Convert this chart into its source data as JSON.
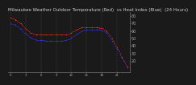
{
  "title": "Milwaukee Weather Outdoor Temperature (Red)  vs Heat Index (Blue)  (24 Hours)",
  "temp_red": [
    78,
    75,
    70,
    63,
    58,
    55,
    55,
    55,
    55,
    55,
    55,
    55,
    58,
    62,
    65,
    65,
    65,
    65,
    64,
    60,
    50,
    38,
    25,
    12
  ],
  "heat_blue": [
    70,
    68,
    63,
    56,
    51,
    48,
    48,
    47,
    47,
    47,
    47,
    48,
    51,
    56,
    60,
    62,
    62,
    62,
    61,
    57,
    47,
    36,
    24,
    11
  ],
  "ylim": [
    5,
    85
  ],
  "ytick_vals": [
    20,
    30,
    40,
    50,
    60,
    70,
    80
  ],
  "ytick_labels": [
    "20",
    "30",
    "40",
    "50",
    "60",
    "70",
    "80"
  ],
  "hours": 24,
  "bg_color": "#1a1a1a",
  "plot_bg": "#1a1a1a",
  "red_color": "#ff2222",
  "blue_color": "#3333ff",
  "grid_color": "#555555",
  "title_color": "#cccccc",
  "tick_color": "#aaaaaa",
  "title_fontsize": 4.0,
  "tick_fontsize": 3.5,
  "marker_size": 2.0,
  "line_width": 0.5
}
